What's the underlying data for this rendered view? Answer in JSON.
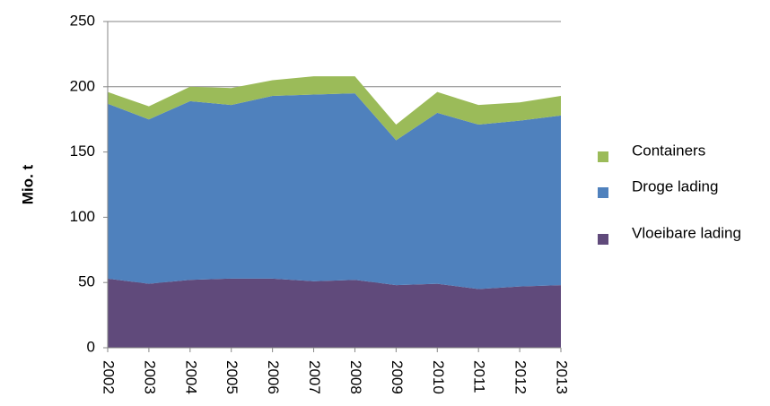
{
  "chart_data": {
    "type": "stacked-area",
    "y_label": "Mio. t",
    "categories": [
      "2002",
      "2003",
      "2004",
      "2005",
      "2006",
      "2007",
      "2008",
      "2009",
      "2010",
      "2011",
      "2012",
      "2013"
    ],
    "series": [
      {
        "name": "Vloeibare lading",
        "color": "#604a7b",
        "values": [
          53,
          49,
          52,
          53,
          53,
          51,
          52,
          48,
          49,
          45,
          47,
          48
        ]
      },
      {
        "name": "Droge lading",
        "color": "#4f81bd",
        "values": [
          134,
          126,
          137,
          133,
          140,
          143,
          143,
          111,
          131,
          126,
          127,
          130
        ]
      },
      {
        "name": "Containers",
        "color": "#9bbb59",
        "values": [
          9,
          10,
          11,
          13,
          12,
          14,
          13,
          12,
          16,
          15,
          14,
          15
        ]
      }
    ],
    "ylim": [
      0,
      250
    ],
    "yticks": [
      0,
      50,
      100,
      150,
      200,
      250
    ],
    "grid": true
  }
}
